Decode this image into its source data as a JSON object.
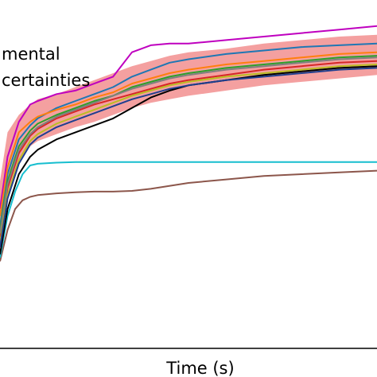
{
  "chart_data": {
    "type": "line",
    "xlabel": "Time (s)",
    "ylabel": "",
    "title": "",
    "xlim": [
      0,
      100
    ],
    "ylim": [
      0,
      100
    ],
    "grid": false,
    "legend": {
      "placement": "top-left",
      "entries": [
        "mental",
        "certainties"
      ]
    },
    "band": {
      "color": "#f4a0a0",
      "x": [
        0,
        2,
        5,
        8,
        10,
        15,
        20,
        25,
        30,
        35,
        40,
        45,
        50,
        60,
        70,
        80,
        90,
        100
      ],
      "upper": [
        48,
        62,
        67,
        70,
        71.5,
        73,
        75,
        77,
        79,
        81,
        82.5,
        84,
        85,
        86,
        87.5,
        88.5,
        89.5,
        90
      ],
      "lower": [
        30,
        43,
        53,
        58,
        59.5,
        61.5,
        63.5,
        65,
        67,
        69,
        70.5,
        71.5,
        72.5,
        74,
        75.5,
        76.5,
        77.5,
        78.5
      ]
    },
    "series": [
      {
        "color": "#bf00bf",
        "x": [
          0,
          2,
          5,
          8,
          10,
          15,
          20,
          25,
          30,
          35,
          40,
          45,
          50,
          60,
          70,
          80,
          90,
          100
        ],
        "y": [
          40,
          55,
          65,
          70,
          71,
          73,
          74,
          76,
          78,
          85,
          87,
          87.5,
          87.5,
          88.5,
          89.5,
          90.5,
          91.5,
          92.5
        ]
      },
      {
        "color": "#1f77b4",
        "x": [
          0,
          2,
          5,
          8,
          10,
          15,
          20,
          25,
          30,
          35,
          40,
          45,
          50,
          60,
          70,
          80,
          90,
          100
        ],
        "y": [
          35,
          50,
          60,
          64,
          66,
          69,
          71,
          73,
          75,
          78,
          80,
          82,
          83,
          84.5,
          85.5,
          86.5,
          87,
          87.5
        ]
      },
      {
        "color": "#ff7f0e",
        "x": [
          0,
          2,
          5,
          8,
          10,
          15,
          20,
          25,
          30,
          35,
          40,
          45,
          50,
          60,
          70,
          80,
          90,
          100
        ],
        "y": [
          38,
          52,
          62,
          65,
          66.5,
          68.5,
          70,
          72,
          73.5,
          76,
          77.5,
          79,
          80,
          81.5,
          82.5,
          83.5,
          84.5,
          85
        ]
      },
      {
        "color": "#2ca02c",
        "x": [
          0,
          2,
          5,
          8,
          10,
          15,
          20,
          25,
          30,
          35,
          40,
          45,
          50,
          60,
          70,
          80,
          90,
          100
        ],
        "y": [
          34,
          48,
          58,
          62.5,
          64.5,
          67,
          69,
          71,
          72.5,
          75,
          76.5,
          78,
          79,
          80.5,
          81.5,
          82.5,
          83.5,
          84
        ]
      },
      {
        "color": "#d62728",
        "x": [
          0,
          2,
          5,
          8,
          10,
          15,
          20,
          25,
          30,
          35,
          40,
          45,
          50,
          60,
          70,
          80,
          90,
          100
        ],
        "y": [
          32,
          46,
          56,
          61,
          63,
          66,
          68,
          70,
          71.5,
          73,
          74.5,
          76,
          77,
          78.5,
          80,
          81,
          82,
          82.5
        ]
      },
      {
        "color": "#8c564b",
        "x": [
          0,
          2,
          4,
          6,
          8,
          10,
          15,
          20,
          25,
          30,
          35,
          40,
          50,
          60,
          70,
          80,
          90,
          100
        ],
        "y": [
          25,
          34,
          40,
          42.5,
          43.5,
          44,
          44.5,
          44.8,
          45,
          45,
          45.2,
          45.8,
          47.5,
          48.5,
          49.5,
          50,
          50.5,
          51
        ]
      },
      {
        "color": "#17becf",
        "x": [
          0,
          2,
          4,
          6,
          8,
          10,
          15,
          20,
          25,
          30,
          40,
          50,
          60,
          70,
          80,
          90,
          100
        ],
        "y": [
          26,
          38,
          45,
          50,
          52.5,
          53,
          53.3,
          53.5,
          53.5,
          53.5,
          53.5,
          53.5,
          53.5,
          53.5,
          53.5,
          53.5,
          53.5
        ]
      },
      {
        "color": "#000000",
        "x": [
          0,
          2,
          5,
          8,
          10,
          15,
          20,
          25,
          30,
          35,
          40,
          45,
          50,
          60,
          70,
          80,
          90,
          100
        ],
        "y": [
          27,
          40,
          50,
          55,
          57,
          60,
          62,
          64,
          66,
          69,
          72,
          74,
          75.5,
          77,
          78.5,
          79.5,
          80.5,
          81
        ]
      },
      {
        "color": "#7f7f7f",
        "x": [
          0,
          2,
          5,
          8,
          10,
          15,
          20,
          25,
          30,
          35,
          40,
          45,
          50,
          60,
          70,
          80,
          90,
          100
        ],
        "y": [
          33,
          47,
          57,
          61.5,
          63.5,
          66.5,
          68.5,
          70.5,
          72.5,
          74.5,
          76,
          77.5,
          78.5,
          80,
          81,
          82,
          83,
          83.5
        ]
      },
      {
        "color": "#bcbd22",
        "x": [
          0,
          2,
          5,
          8,
          10,
          15,
          20,
          25,
          30,
          35,
          40,
          45,
          50,
          60,
          70,
          80,
          90,
          100
        ],
        "y": [
          30,
          44,
          54,
          59.5,
          61.5,
          64.5,
          66.5,
          68.5,
          70.5,
          72.5,
          74,
          75.5,
          76.5,
          78,
          79,
          80,
          81,
          81.5
        ]
      },
      {
        "color": "#1f3f8f",
        "x": [
          0,
          2,
          5,
          8,
          10,
          15,
          20,
          25,
          30,
          35,
          40,
          45,
          50,
          60,
          70,
          80,
          90,
          100
        ],
        "y": [
          29,
          43,
          53,
          58.5,
          60.5,
          63.5,
          65.5,
          67.5,
          69.5,
          71.5,
          73,
          74.5,
          75.5,
          77,
          78,
          79,
          80,
          80.5
        ]
      }
    ]
  }
}
